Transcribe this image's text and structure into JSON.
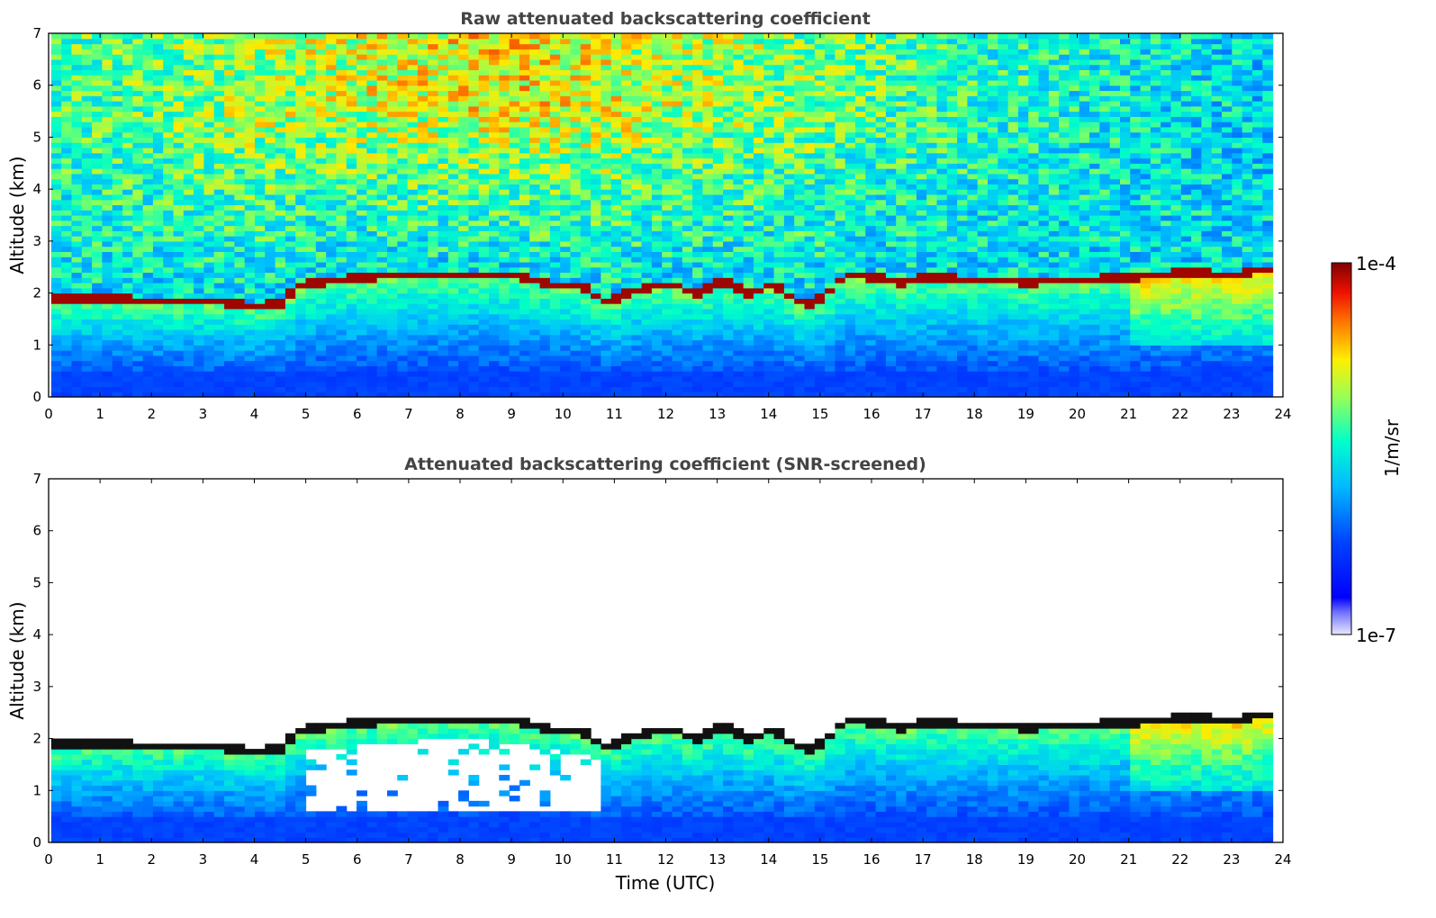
{
  "chart_data": [
    {
      "type": "heatmap",
      "title": "Raw attenuated backscattering coefficient",
      "xlabel": "",
      "ylabel": "Altitude (km)",
      "xlim": [
        0,
        24
      ],
      "ylim": [
        0,
        7
      ],
      "xticks": [
        "0",
        "1",
        "2",
        "3",
        "4",
        "5",
        "6",
        "7",
        "8",
        "9",
        "10",
        "11",
        "12",
        "13",
        "14",
        "15",
        "16",
        "17",
        "18",
        "19",
        "20",
        "21",
        "22",
        "23",
        "24"
      ],
      "yticks": [
        "0",
        "1",
        "2",
        "3",
        "4",
        "5",
        "6",
        "7"
      ],
      "screened": false,
      "layer_top_km": [
        [
          0.1,
          1.85
        ],
        [
          1,
          1.85
        ],
        [
          2,
          1.8
        ],
        [
          3,
          1.78
        ],
        [
          4,
          1.7
        ],
        [
          4.4,
          1.75
        ],
        [
          4.8,
          2.1
        ],
        [
          5.5,
          2.2
        ],
        [
          6.5,
          2.28
        ],
        [
          7.5,
          2.32
        ],
        [
          8.5,
          2.3
        ],
        [
          9,
          2.3
        ],
        [
          9.5,
          2.15
        ],
        [
          10.3,
          2.05
        ],
        [
          10.8,
          1.75
        ],
        [
          11.2,
          2.0
        ],
        [
          12,
          2.1
        ],
        [
          12.5,
          1.95
        ],
        [
          13,
          2.2
        ],
        [
          13.5,
          1.95
        ],
        [
          14,
          2.1
        ],
        [
          14.6,
          1.7
        ],
        [
          15,
          1.9
        ],
        [
          15.4,
          2.3
        ],
        [
          16,
          2.25
        ],
        [
          16.5,
          2.15
        ],
        [
          17,
          2.25
        ],
        [
          18,
          2.2
        ],
        [
          19,
          2.15
        ],
        [
          20,
          2.2
        ],
        [
          21,
          2.25
        ],
        [
          22,
          2.35
        ],
        [
          23,
          2.3
        ],
        [
          23.8,
          2.45
        ]
      ]
    },
    {
      "type": "heatmap",
      "title": "Attenuated backscattering coefficient (SNR-screened)",
      "xlabel": "Time (UTC)",
      "ylabel": "Altitude (km)",
      "xlim": [
        0,
        24
      ],
      "ylim": [
        0,
        7
      ],
      "xticks": [
        "0",
        "1",
        "2",
        "3",
        "4",
        "5",
        "6",
        "7",
        "8",
        "9",
        "10",
        "11",
        "12",
        "13",
        "14",
        "15",
        "16",
        "17",
        "18",
        "19",
        "20",
        "21",
        "22",
        "23",
        "24"
      ],
      "yticks": [
        "0",
        "1",
        "2",
        "3",
        "4",
        "5",
        "6",
        "7"
      ],
      "screened": true
    }
  ],
  "colorbar": {
    "label": "1/m/sr",
    "max_label": "1e-4",
    "min_label": "1e-7",
    "colormap": "jet",
    "colors": [
      "#ffffff",
      "#0000ff",
      "#00aaff",
      "#00ffcc",
      "#aaff55",
      "#ffff00",
      "#ff8800",
      "#ff0000",
      "#800000"
    ]
  }
}
